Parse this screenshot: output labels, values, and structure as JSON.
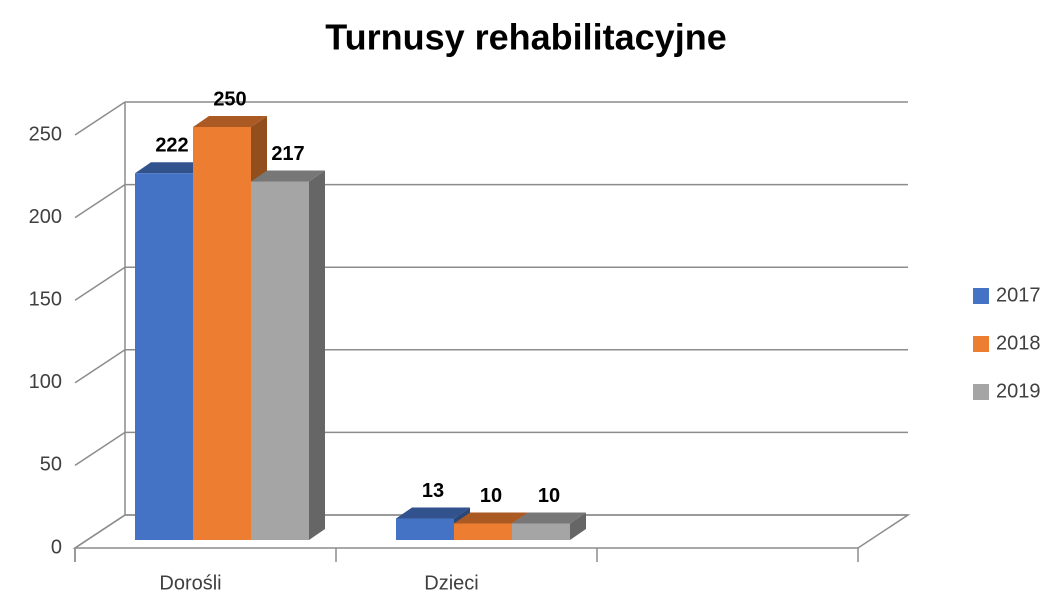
{
  "chart_data": {
    "type": "bar3d",
    "title": "Turnusy rehabilitacyjne",
    "categories": [
      "Dorośli",
      "Dzieci",
      null
    ],
    "series": [
      {
        "name": "2017",
        "color": "#4472c4",
        "values": [
          222,
          13,
          null
        ]
      },
      {
        "name": "2018",
        "color": "#ed7d31",
        "values": [
          250,
          10,
          null
        ]
      },
      {
        "name": "2019",
        "color": "#a5a5a5",
        "values": [
          217,
          10,
          null
        ]
      }
    ],
    "ylim": [
      0,
      250
    ],
    "yticks": [
      0,
      50,
      100,
      150,
      200,
      250
    ],
    "grid": true,
    "legend": "right"
  }
}
